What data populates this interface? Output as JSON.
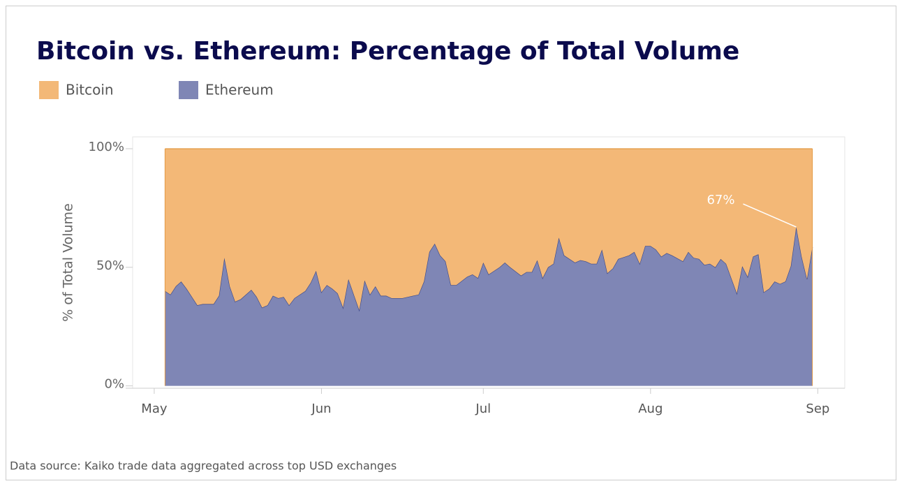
{
  "chart_data": {
    "type": "stacked-area",
    "title": "Bitcoin vs. Ethereum: Percentage of Total Volume",
    "y_label": "% of Total Volume",
    "source": "Data source: Kaiko trade data aggregated across top USD exchanges",
    "x": [
      2,
      3,
      4,
      5,
      6,
      8,
      9,
      10,
      11,
      12,
      13,
      14,
      15,
      16,
      18,
      19,
      20,
      21,
      22,
      23,
      24,
      25,
      26,
      28,
      29,
      30,
      31,
      32,
      33,
      34,
      35,
      36,
      38,
      39,
      40,
      41,
      42,
      43,
      44,
      45,
      46,
      48,
      49,
      50,
      51,
      52,
      53,
      54,
      55,
      56,
      58,
      59,
      60,
      61,
      62,
      63,
      64,
      65,
      66,
      68,
      69,
      70,
      71,
      72,
      73,
      74,
      75,
      76,
      78,
      79,
      80,
      81,
      82,
      83,
      84,
      85,
      86,
      88,
      89,
      90,
      91,
      92,
      93,
      94,
      95,
      96,
      98,
      99,
      100,
      101,
      102,
      103,
      104,
      105,
      106,
      108,
      109,
      110,
      111,
      112,
      113,
      114,
      115,
      116,
      117,
      118,
      119,
      120,
      121,
      122
    ],
    "series": [
      {
        "name": "Bitcoin",
        "color": "#f3b877",
        "stroke": "#e39a45",
        "values": [
          60,
          61.5,
          58,
          56,
          59,
          66,
          65.5,
          65.5,
          65.5,
          62,
          46,
          58,
          64.5,
          63.5,
          59.5,
          62.5,
          67,
          66,
          62,
          63,
          62.5,
          66,
          63,
          60,
          56.5,
          51.5,
          60.5,
          57.5,
          59,
          61,
          67,
          55,
          68,
          55.5,
          61.5,
          58,
          62,
          62,
          63,
          63,
          63,
          62,
          61.5,
          56,
          43.5,
          40,
          45,
          47.5,
          57.5,
          57.5,
          54,
          53,
          54.5,
          48,
          53,
          51.5,
          50,
          48,
          50,
          53.5,
          52,
          52,
          47,
          54.5,
          50,
          48.5,
          37.5,
          45,
          48,
          47,
          47.5,
          48.5,
          48.5,
          42.5,
          52.5,
          50.5,
          46.5,
          45,
          43.5,
          48.5,
          41,
          41,
          42.5,
          45.5,
          44,
          45,
          47.5,
          43.5,
          46,
          46.5,
          49,
          48.5,
          50,
          46.5,
          48.5,
          61,
          49.5,
          54,
          45.5,
          44.5,
          60.5,
          59,
          56,
          57,
          56,
          49.5,
          33,
          45.5,
          55,
          41.5
        ]
      },
      {
        "name": "Ethereum",
        "color": "#7f86b5",
        "stroke": "#3c4a8a",
        "values": [
          40,
          38.5,
          42,
          44,
          41,
          34,
          34.5,
          34.5,
          34.5,
          38,
          54,
          42,
          35.5,
          36.5,
          40.5,
          37.5,
          33,
          34,
          38,
          37,
          37.5,
          34,
          37,
          40,
          43.5,
          48.5,
          39.5,
          42.5,
          41,
          39,
          33,
          45,
          32,
          44.5,
          38.5,
          42,
          38,
          38,
          37,
          37,
          37,
          38,
          38.5,
          44,
          56.5,
          60,
          55,
          52.5,
          42.5,
          42.5,
          46,
          47,
          45.5,
          52,
          47,
          48.5,
          50,
          52,
          50,
          46.5,
          48,
          48,
          53,
          45.5,
          50,
          51.5,
          62.5,
          55,
          52,
          53,
          52.5,
          51.5,
          51.5,
          57.5,
          47.5,
          49.5,
          53.5,
          55,
          56.5,
          51.5,
          59,
          59,
          57.5,
          54.5,
          56,
          55,
          52.5,
          56.5,
          54,
          53.5,
          51,
          51.5,
          50,
          53.5,
          51.5,
          39,
          50.5,
          46,
          54.5,
          55.5,
          39.5,
          41,
          44,
          43,
          44,
          50.5,
          67,
          54.5,
          45,
          58.5
        ]
      }
    ],
    "annotations": [
      {
        "text": "67%",
        "x": 119,
        "y": 67
      }
    ],
    "xlim": [
      -4,
      128
    ],
    "xticks": [
      {
        "value": 0,
        "label": "May"
      },
      {
        "value": 31,
        "label": "Jun"
      },
      {
        "value": 61,
        "label": "Jul"
      },
      {
        "value": 92,
        "label": "Aug"
      },
      {
        "value": 123,
        "label": "Sep"
      }
    ],
    "ylim": [
      -1,
      105
    ],
    "yticks": [
      {
        "value": 0,
        "label": "0%"
      },
      {
        "value": 50,
        "label": "50%"
      },
      {
        "value": 100,
        "label": "100%"
      }
    ],
    "legend": "top-left"
  }
}
